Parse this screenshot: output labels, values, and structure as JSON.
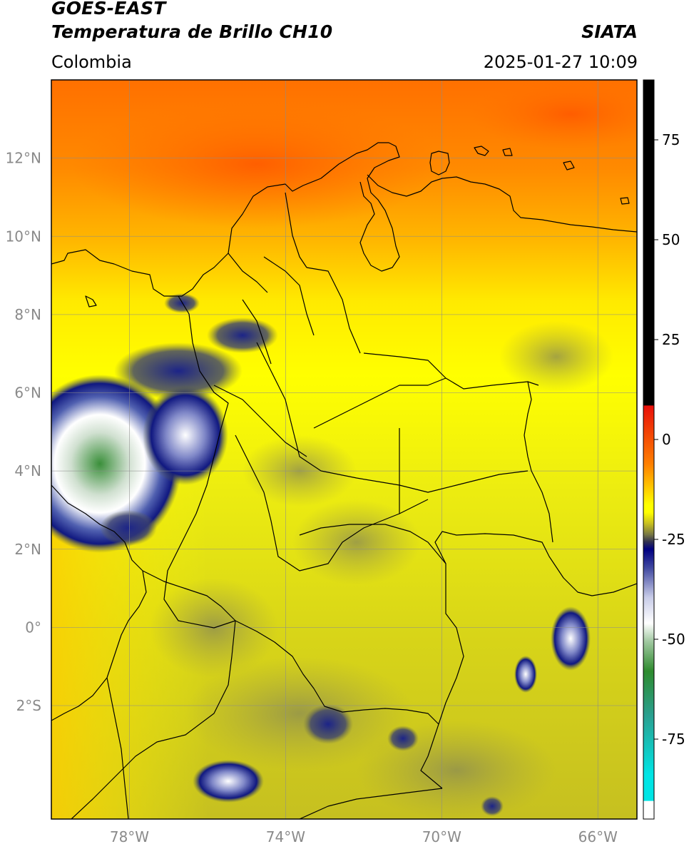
{
  "header": {
    "satellite": "GOES-EAST",
    "product": "Temperatura de Brillo CH10",
    "brand": "SIATA",
    "region": "Colombia",
    "timestamp": "2025-01-27 10:09"
  },
  "map": {
    "lon_range": [
      -80,
      -65
    ],
    "lat_range": [
      -4.9,
      14
    ],
    "lat_ticks": [
      {
        "lat": 12,
        "label": "12°N"
      },
      {
        "lat": 10,
        "label": "10°N"
      },
      {
        "lat": 8,
        "label": "8°N"
      },
      {
        "lat": 6,
        "label": "6°N"
      },
      {
        "lat": 4,
        "label": "4°N"
      },
      {
        "lat": 2,
        "label": "2°N"
      },
      {
        "lat": 0,
        "label": "0°"
      },
      {
        "lat": -2,
        "label": "2°S"
      }
    ],
    "lon_ticks": [
      {
        "lon": -78,
        "label": "78°W"
      },
      {
        "lon": -74,
        "label": "74°W"
      },
      {
        "lon": -70,
        "label": "70°W"
      },
      {
        "lon": -66,
        "label": "66°W"
      }
    ],
    "gridlines": true
  },
  "colorbar": {
    "range": [
      -95,
      90
    ],
    "ticks": [
      {
        "value": 75,
        "label": "75"
      },
      {
        "value": 50,
        "label": "50"
      },
      {
        "value": 25,
        "label": "25"
      },
      {
        "value": 0,
        "label": "0"
      },
      {
        "value": -25,
        "label": "-25"
      },
      {
        "value": -50,
        "label": "-50"
      },
      {
        "value": -75,
        "label": "-75"
      }
    ],
    "colors": {
      "black": "#000000",
      "red": "#e8100a",
      "orange": "#ff8000",
      "yellow": "#ffff00",
      "olive": "#c8c020",
      "navy": "#000080",
      "white": "#ffffff",
      "green": "#2e8b2e",
      "cyan": "#00e5e5"
    }
  }
}
